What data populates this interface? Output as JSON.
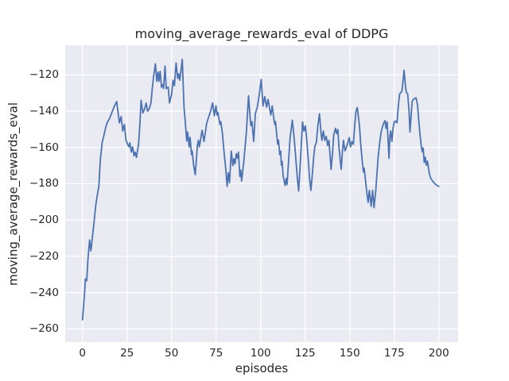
{
  "figure": {
    "background": "#ffffff",
    "plot_background": "#eaeaf2",
    "grid_color": "#ffffff",
    "text_color": "#262626",
    "line_color": "#4c72b0"
  },
  "chart_data": {
    "type": "line",
    "title": "moving_average_rewards_eval of DDPG",
    "xlabel": "episodes",
    "ylabel": "moving_average_rewards_eval",
    "x_ticks": [
      0,
      25,
      50,
      75,
      100,
      125,
      150,
      175,
      200
    ],
    "y_ticks": [
      -260,
      -240,
      -220,
      -200,
      -180,
      -160,
      -140,
      -120
    ],
    "xlim": [
      -9.7,
      210.8
    ],
    "ylim": [
      -267.3,
      -103.7
    ],
    "grid": true,
    "legend_position": "none",
    "series": [
      {
        "name": "DDPG",
        "color": "#4c72b0",
        "points": [
          [
            0,
            -255
          ],
          [
            1.2,
            -240
          ],
          [
            1.6,
            -232.5
          ],
          [
            2.4,
            -233.5
          ],
          [
            3,
            -222
          ],
          [
            4,
            -211
          ],
          [
            4.7,
            -217
          ],
          [
            5.5,
            -210
          ],
          [
            6.5,
            -201
          ],
          [
            7.5,
            -191.5
          ],
          [
            8.5,
            -185
          ],
          [
            9.2,
            -181.5
          ],
          [
            10,
            -167
          ],
          [
            11,
            -157.5
          ],
          [
            12,
            -153.5
          ],
          [
            13,
            -149
          ],
          [
            14,
            -146
          ],
          [
            15,
            -144.5
          ],
          [
            16,
            -142
          ],
          [
            17,
            -139.5
          ],
          [
            18,
            -137
          ],
          [
            19.2,
            -134.7
          ],
          [
            20.7,
            -146.5
          ],
          [
            21.7,
            -143
          ],
          [
            22.6,
            -151
          ],
          [
            23.5,
            -147.3
          ],
          [
            24.4,
            -156
          ],
          [
            25.9,
            -159.6
          ],
          [
            26.6,
            -157.5
          ],
          [
            27.4,
            -162.6
          ],
          [
            28.1,
            -159.7
          ],
          [
            28.9,
            -164.7
          ],
          [
            29.6,
            -162.6
          ],
          [
            30.3,
            -165.5
          ],
          [
            31.5,
            -158
          ],
          [
            32.2,
            -147
          ],
          [
            32.9,
            -134
          ],
          [
            33.9,
            -141
          ],
          [
            35,
            -138.5
          ],
          [
            35.7,
            -135.5
          ],
          [
            36.5,
            -140
          ],
          [
            37.2,
            -139.2
          ],
          [
            38.4,
            -135.6
          ],
          [
            39.1,
            -128.3
          ],
          [
            39.9,
            -121
          ],
          [
            40.9,
            -114
          ],
          [
            41.7,
            -123.6
          ],
          [
            42.4,
            -118.4
          ],
          [
            42.9,
            -123.6
          ],
          [
            43.6,
            -118.1
          ],
          [
            44.3,
            -126.8
          ],
          [
            45.1,
            -125.4
          ],
          [
            45.5,
            -127.6
          ],
          [
            46.3,
            -115.2
          ],
          [
            47,
            -127.6
          ],
          [
            48.1,
            -126.8
          ],
          [
            48.8,
            -135.5
          ],
          [
            50,
            -131
          ],
          [
            50.8,
            -123
          ],
          [
            51.6,
            -126
          ],
          [
            52.5,
            -113.5
          ],
          [
            53.4,
            -122
          ],
          [
            54,
            -119.5
          ],
          [
            54.6,
            -123
          ],
          [
            56,
            -111.5
          ],
          [
            57,
            -138
          ],
          [
            58,
            -150
          ],
          [
            58.5,
            -156.5
          ],
          [
            59,
            -151.5
          ],
          [
            59.9,
            -159.7
          ],
          [
            60.4,
            -154.5
          ],
          [
            61.2,
            -164
          ],
          [
            61.6,
            -162
          ],
          [
            62.4,
            -170
          ],
          [
            63.3,
            -175
          ],
          [
            64.5,
            -159
          ],
          [
            65,
            -156
          ],
          [
            65.6,
            -159.7
          ],
          [
            67.1,
            -150.5
          ],
          [
            68.2,
            -156.7
          ],
          [
            69.7,
            -146.6
          ],
          [
            70.4,
            -144.4
          ],
          [
            71.9,
            -140
          ],
          [
            73,
            -135.5
          ],
          [
            74,
            -142.5
          ],
          [
            74.9,
            -137.1
          ],
          [
            75.5,
            -142.2
          ],
          [
            76,
            -140.7
          ],
          [
            77.1,
            -147.3
          ],
          [
            77.6,
            -145.8
          ],
          [
            78.5,
            -152
          ],
          [
            79.5,
            -163
          ],
          [
            80.4,
            -172
          ],
          [
            81.2,
            -181.5
          ],
          [
            81.8,
            -174
          ],
          [
            82.5,
            -179.5
          ],
          [
            83.5,
            -162
          ],
          [
            84.4,
            -170
          ],
          [
            85,
            -166.2
          ],
          [
            85.6,
            -169
          ],
          [
            86.3,
            -163.5
          ],
          [
            87,
            -166
          ],
          [
            87.5,
            -162.6
          ],
          [
            88.3,
            -176
          ],
          [
            88.8,
            -172.5
          ],
          [
            89.3,
            -178.6
          ],
          [
            90.5,
            -168
          ],
          [
            92,
            -151.6
          ],
          [
            93.2,
            -131.5
          ],
          [
            94,
            -142.5
          ],
          [
            94.5,
            -148
          ],
          [
            95.1,
            -145.8
          ],
          [
            96.1,
            -156.7
          ],
          [
            97,
            -141.5
          ],
          [
            98.1,
            -137.8
          ],
          [
            99.2,
            -131
          ],
          [
            100.3,
            -122.5
          ],
          [
            101.3,
            -137.1
          ],
          [
            102.3,
            -132
          ],
          [
            103.3,
            -137.8
          ],
          [
            104.1,
            -133.5
          ],
          [
            105.7,
            -142.2
          ],
          [
            106.5,
            -137.1
          ],
          [
            107.5,
            -145.1
          ],
          [
            108,
            -147.5
          ],
          [
            108.3,
            -145.8
          ],
          [
            109.5,
            -158.2
          ],
          [
            110,
            -156
          ],
          [
            110.7,
            -164
          ],
          [
            111.2,
            -162
          ],
          [
            111.6,
            -169.8
          ],
          [
            112,
            -167.7
          ],
          [
            112.6,
            -175.7
          ],
          [
            113.7,
            -181
          ],
          [
            114.3,
            -177.1
          ],
          [
            114.8,
            -180.5
          ],
          [
            115.5,
            -169.8
          ],
          [
            116.5,
            -155
          ],
          [
            117.8,
            -145
          ],
          [
            119,
            -157
          ],
          [
            120,
            -170
          ],
          [
            120.7,
            -177.9
          ],
          [
            121.3,
            -184
          ],
          [
            122,
            -172.1
          ],
          [
            122.7,
            -160.4
          ],
          [
            123.5,
            -146
          ],
          [
            124.3,
            -151
          ],
          [
            125.1,
            -148.1
          ],
          [
            126,
            -157.5
          ],
          [
            126.8,
            -167.7
          ],
          [
            127.5,
            -177.9
          ],
          [
            128.2,
            -183.7
          ],
          [
            129,
            -175
          ],
          [
            129.8,
            -164.8
          ],
          [
            130.5,
            -159
          ],
          [
            131.2,
            -157.5
          ],
          [
            132,
            -148.7
          ],
          [
            133,
            -141.5
          ],
          [
            134,
            -153.1
          ],
          [
            134.4,
            -156.1
          ],
          [
            135.2,
            -151
          ],
          [
            136,
            -156.1
          ],
          [
            136.8,
            -153.9
          ],
          [
            137.6,
            -159
          ],
          [
            138.3,
            -156.1
          ],
          [
            139.5,
            -172.1
          ],
          [
            140.3,
            -163.3
          ],
          [
            141,
            -153.1
          ],
          [
            142,
            -149.5
          ],
          [
            142.6,
            -152.4
          ],
          [
            143.3,
            -150.2
          ],
          [
            144,
            -160.4
          ],
          [
            145.2,
            -172.1
          ],
          [
            145.9,
            -161.9
          ],
          [
            146.5,
            -156.1
          ],
          [
            147.3,
            -161.9
          ],
          [
            148.5,
            -159
          ],
          [
            149.7,
            -154.6
          ],
          [
            150.4,
            -159.7
          ],
          [
            151.2,
            -156.8
          ],
          [
            152,
            -158.3
          ],
          [
            152.8,
            -147.3
          ],
          [
            153.5,
            -140
          ],
          [
            154.2,
            -138
          ],
          [
            155,
            -144.4
          ],
          [
            155.5,
            -148.7
          ],
          [
            156.2,
            -159
          ],
          [
            157,
            -167.7
          ],
          [
            157.7,
            -173.5
          ],
          [
            158.1,
            -171.4
          ],
          [
            159,
            -179.4
          ],
          [
            159.6,
            -185.2
          ],
          [
            160.3,
            -190.3
          ],
          [
            161,
            -183.7
          ],
          [
            162,
            -192.5
          ],
          [
            162.8,
            -183.7
          ],
          [
            163.6,
            -193.2
          ],
          [
            164.6,
            -183.7
          ],
          [
            165.3,
            -173.5
          ],
          [
            166,
            -164.8
          ],
          [
            166.8,
            -157.5
          ],
          [
            167.6,
            -151.7
          ],
          [
            168.3,
            -148.8
          ],
          [
            169,
            -146.6
          ],
          [
            169.8,
            -145.2
          ],
          [
            170.3,
            -149.5
          ],
          [
            171,
            -145.9
          ],
          [
            172,
            -166
          ],
          [
            172.5,
            -154
          ],
          [
            173,
            -150.9
          ],
          [
            173.6,
            -156.7
          ],
          [
            174.3,
            -149.4
          ],
          [
            175,
            -145.8
          ],
          [
            175.8,
            -145.5
          ],
          [
            176.5,
            -146.5
          ],
          [
            177.2,
            -137.8
          ],
          [
            178,
            -130.5
          ],
          [
            179.3,
            -129
          ],
          [
            180.5,
            -117.5
          ],
          [
            181.3,
            -126.8
          ],
          [
            181.8,
            -129.8
          ],
          [
            182.5,
            -130.5
          ],
          [
            183.2,
            -139.2
          ],
          [
            183.8,
            -151.5
          ],
          [
            185,
            -134.8
          ],
          [
            185.7,
            -133.4
          ],
          [
            187.2,
            -132.7
          ],
          [
            188,
            -136.3
          ],
          [
            188.7,
            -145.1
          ],
          [
            189.5,
            -153.8
          ],
          [
            190.2,
            -159.6
          ],
          [
            190.7,
            -162.5
          ],
          [
            191.2,
            -160.3
          ],
          [
            191.8,
            -168.3
          ],
          [
            192.4,
            -165.4
          ],
          [
            193,
            -169.8
          ],
          [
            193.6,
            -167.6
          ],
          [
            194.6,
            -174.1
          ],
          [
            195.4,
            -177
          ],
          [
            197,
            -179.2
          ],
          [
            198.4,
            -180.6
          ],
          [
            200,
            -181.5
          ]
        ]
      }
    ]
  }
}
